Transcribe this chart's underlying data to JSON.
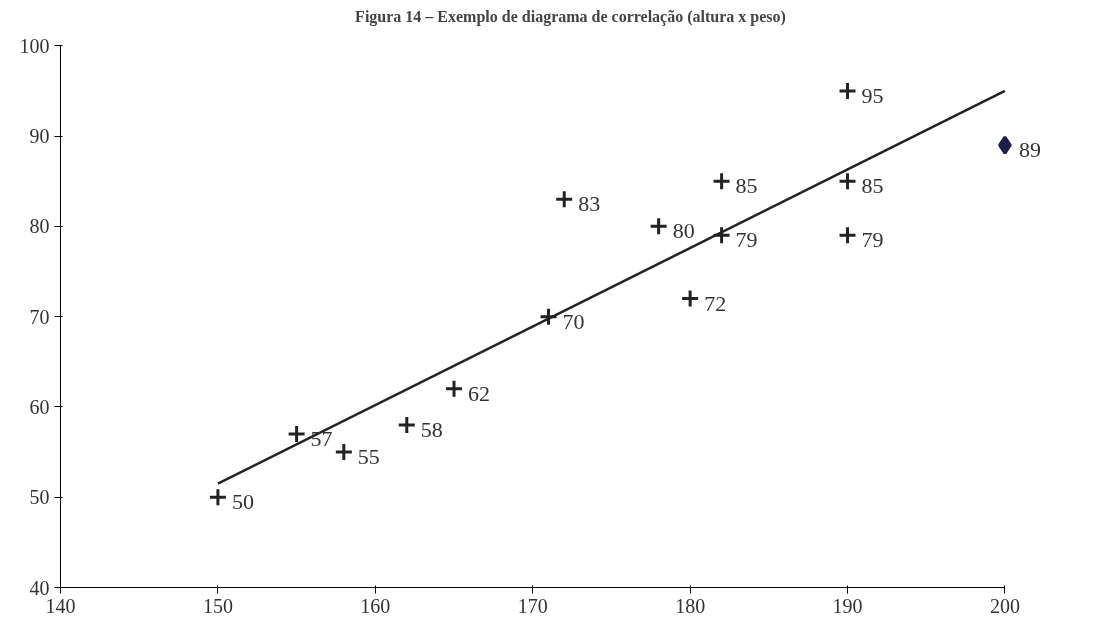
{
  "chart_data": {
    "type": "scatter",
    "title": "Figura 14 – Exemplo de diagrama de correlação (altura x peso)",
    "xlim": [
      140,
      200
    ],
    "xticks": [
      140,
      150,
      160,
      170,
      180,
      190,
      200
    ],
    "ylim": [
      40,
      100
    ],
    "yticks": [
      40,
      50,
      60,
      70,
      80,
      90,
      100
    ],
    "grid": false,
    "series": [
      {
        "marker": "cross",
        "color": "#222222",
        "x": [
          150,
          155,
          158,
          162,
          165,
          171,
          172,
          178,
          180,
          182,
          182,
          190,
          190,
          190
        ],
        "values": [
          50,
          57,
          55,
          58,
          62,
          70,
          83,
          80,
          72,
          85,
          79,
          95,
          85,
          79
        ],
        "value_labels": [
          "50",
          "57",
          "55",
          "58",
          "62",
          "70",
          "83",
          "80",
          "72",
          "85",
          "79",
          "95",
          "85",
          "79"
        ]
      },
      {
        "marker": "diamond",
        "color": "#1f1f4a",
        "x": [
          200
        ],
        "values": [
          89
        ],
        "value_labels": [
          "89"
        ]
      },
      {
        "type": "line",
        "color": "#222222",
        "x": [
          150,
          200
        ],
        "values": [
          51.5,
          95
        ]
      }
    ]
  }
}
